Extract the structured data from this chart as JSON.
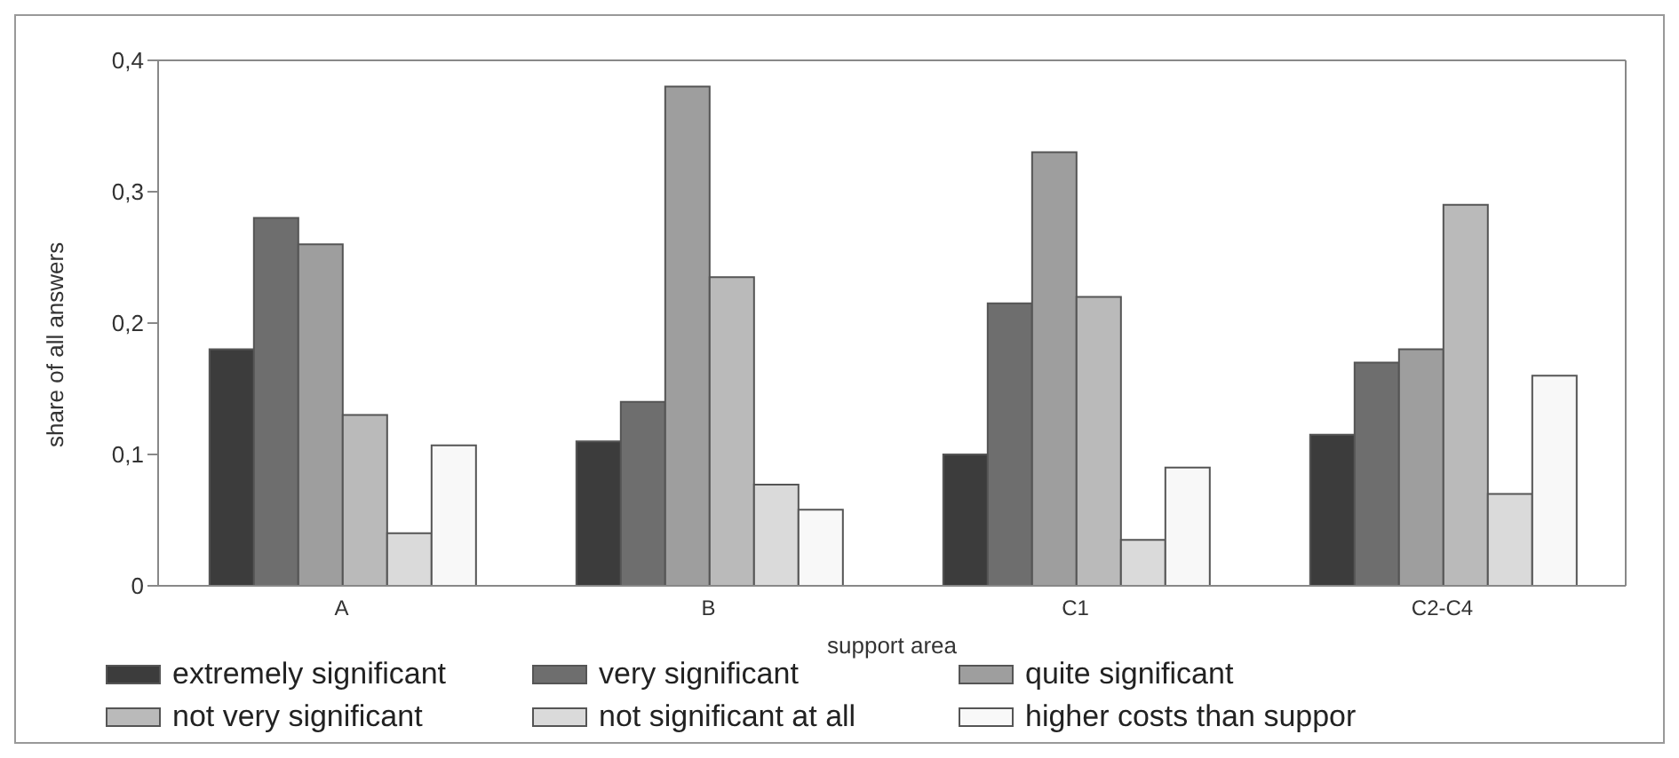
{
  "chart_data": {
    "type": "bar",
    "xlabel": "support area",
    "ylabel": "share of all answers",
    "categories": [
      "A",
      "B",
      "C1",
      "C2-C4"
    ],
    "series": [
      {
        "name": "extremely significant",
        "color": "#3c3c3c",
        "values": [
          0.18,
          0.11,
          0.1,
          0.115
        ]
      },
      {
        "name": "very significant",
        "color": "#6e6e6e",
        "values": [
          0.28,
          0.14,
          0.215,
          0.17
        ]
      },
      {
        "name": "quite significant",
        "color": "#9e9e9e",
        "values": [
          0.26,
          0.38,
          0.33,
          0.18
        ]
      },
      {
        "name": "not very significant",
        "color": "#bababa",
        "values": [
          0.13,
          0.235,
          0.22,
          0.29
        ]
      },
      {
        "name": "not significant at all",
        "color": "#dadada",
        "values": [
          0.04,
          0.077,
          0.035,
          0.07
        ]
      },
      {
        "name": "higher costs than suppor",
        "color": "#f8f8f8",
        "values": [
          0.107,
          0.058,
          0.09,
          0.16
        ]
      }
    ],
    "ylim": [
      0,
      0.4
    ],
    "yticks": [
      {
        "value": 0,
        "label": "0"
      },
      {
        "value": 0.1,
        "label": "0,1"
      },
      {
        "value": 0.2,
        "label": "0,2"
      },
      {
        "value": 0.3,
        "label": "0,3"
      },
      {
        "value": 0.4,
        "label": "0,4"
      }
    ],
    "grid": false,
    "legend": "bottom"
  }
}
